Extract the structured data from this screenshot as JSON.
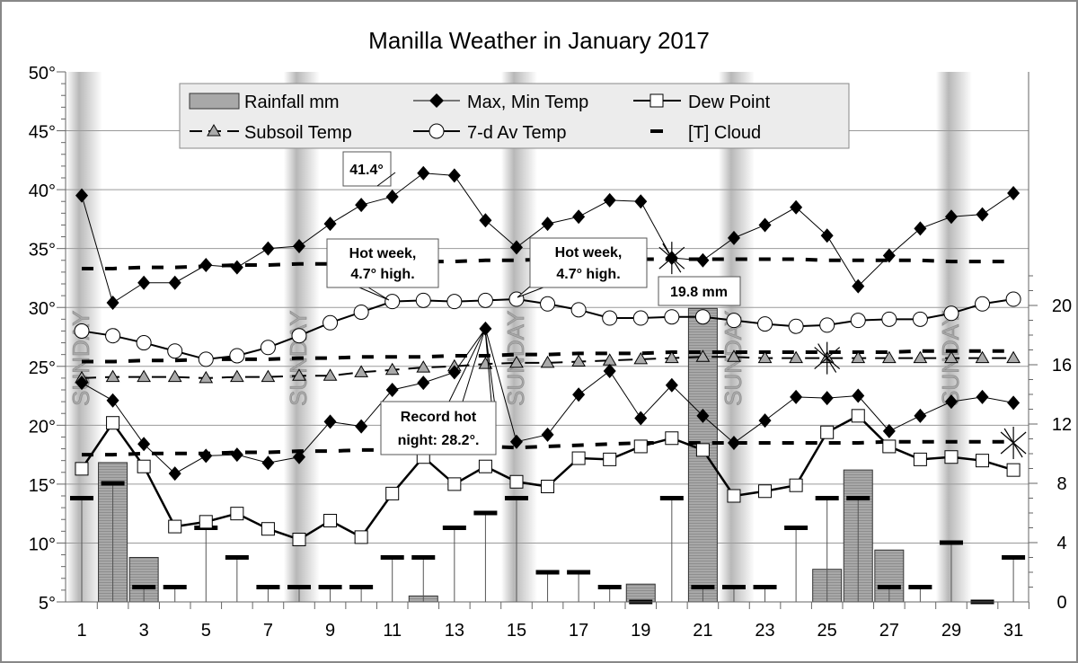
{
  "chart_data": {
    "type": "line",
    "title": "Manilla Weather in January 2017",
    "x": [
      1,
      2,
      3,
      4,
      5,
      6,
      7,
      8,
      9,
      10,
      11,
      12,
      13,
      14,
      15,
      16,
      17,
      18,
      19,
      20,
      21,
      22,
      23,
      24,
      25,
      26,
      27,
      28,
      29,
      30,
      31
    ],
    "x_tick_labels": [
      "1",
      "3",
      "5",
      "7",
      "9",
      "11",
      "13",
      "15",
      "17",
      "19",
      "21",
      "23",
      "25",
      "27",
      "29",
      "31"
    ],
    "y_left": {
      "range": [
        5,
        50
      ],
      "tick_labels": [
        "5°",
        "10°",
        "15°",
        "20°",
        "25°",
        "30°",
        "35°",
        "40°",
        "45°",
        "50°"
      ]
    },
    "y_right": {
      "range": [
        0,
        22.4
      ],
      "tick_labels": [
        "0",
        "4",
        "8",
        "12",
        "16",
        "20"
      ]
    },
    "grid": true,
    "legend_position": "top",
    "series": [
      {
        "name": "Rainfall mm",
        "type": "bar",
        "axis": "right",
        "values": [
          0,
          9.4,
          3.0,
          0,
          0,
          0,
          0,
          0,
          0,
          0,
          0,
          0.4,
          0,
          0,
          0,
          0,
          0,
          0,
          1.2,
          0,
          19.8,
          0,
          0,
          0,
          2.2,
          8.9,
          3.5,
          0,
          0,
          0,
          0
        ]
      },
      {
        "name": "Max, Min Temp",
        "type": "line",
        "marker": "diamond",
        "axis": "left",
        "max": [
          39.5,
          30.4,
          32.1,
          32.1,
          33.6,
          33.4,
          35.0,
          35.2,
          37.1,
          38.7,
          39.4,
          41.4,
          41.2,
          37.4,
          35.1,
          37.1,
          37.7,
          39.1,
          39.0,
          34.2,
          34.0,
          35.9,
          37.0,
          38.5,
          36.1,
          31.8,
          34.4,
          36.7,
          37.7,
          37.9,
          39.7
        ],
        "min": [
          23.6,
          22.1,
          18.4,
          15.9,
          17.4,
          17.5,
          16.8,
          17.3,
          20.3,
          19.9,
          23.0,
          23.6,
          24.5,
          28.2,
          18.6,
          19.2,
          22.6,
          24.6,
          20.6,
          23.4,
          20.8,
          18.5,
          20.4,
          22.4,
          22.3,
          22.5,
          19.5,
          20.8,
          22.0,
          22.4,
          21.9
        ]
      },
      {
        "name": "Dew Point",
        "type": "line",
        "marker": "square",
        "axis": "left",
        "values": [
          16.3,
          20.2,
          16.5,
          11.4,
          11.8,
          12.5,
          11.2,
          10.3,
          11.9,
          10.5,
          14.2,
          17.3,
          15.0,
          16.5,
          15.2,
          14.8,
          17.2,
          17.1,
          18.2,
          18.9,
          17.9,
          14.0,
          14.4,
          14.9,
          19.4,
          20.8,
          18.2,
          17.1,
          17.3,
          17.0,
          16.2
        ]
      },
      {
        "name": "Subsoil Temp",
        "type": "line",
        "marker": "triangle",
        "axis": "left",
        "values": [
          24.0,
          24.1,
          24.1,
          24.1,
          24.0,
          24.1,
          24.1,
          24.2,
          24.2,
          24.5,
          24.7,
          24.9,
          25.0,
          25.2,
          25.3,
          25.3,
          25.4,
          25.5,
          25.6,
          25.7,
          25.8,
          25.8,
          25.7,
          25.7,
          25.7,
          25.7,
          25.7,
          25.7,
          25.7,
          25.7,
          25.7
        ]
      },
      {
        "name": "7-d Av Temp",
        "type": "line",
        "marker": "circle",
        "axis": "left",
        "values": [
          28.0,
          27.6,
          27.0,
          26.3,
          25.6,
          25.9,
          26.6,
          27.6,
          28.7,
          29.6,
          30.5,
          30.6,
          30.5,
          30.6,
          30.7,
          30.3,
          29.8,
          29.1,
          29.1,
          29.2,
          29.2,
          28.9,
          28.6,
          28.4,
          28.5,
          28.9,
          29.0,
          29.0,
          29.5,
          30.3,
          30.7
        ]
      },
      {
        "name": "[T] Cloud",
        "type": "marker",
        "marker": "dash",
        "axis": "right",
        "values": [
          7,
          8,
          1,
          1,
          5,
          3,
          1,
          1,
          1,
          1,
          3,
          3,
          5,
          6,
          7,
          2,
          2,
          1,
          0,
          7,
          1,
          1,
          1,
          5,
          7,
          7,
          1,
          1,
          4,
          0,
          3
        ]
      },
      {
        "type": "dashed-line",
        "axis": "left",
        "values": [
          33.3,
          33.3,
          33.4,
          33.4,
          33.5,
          33.6,
          33.6,
          33.7,
          33.7,
          33.8,
          33.8,
          33.9,
          33.9,
          34.0,
          34.0,
          34.1,
          34.1,
          34.1,
          34.1,
          34.1,
          34.1,
          34.1,
          34.1,
          34.1,
          34.0,
          34.0,
          34.0,
          34.0,
          33.9,
          33.9,
          33.9
        ]
      },
      {
        "type": "dashed-line",
        "axis": "left",
        "values": [
          25.4,
          25.4,
          25.5,
          25.5,
          25.6,
          25.6,
          25.6,
          25.7,
          25.7,
          25.8,
          25.8,
          25.8,
          25.9,
          25.9,
          26.0,
          26.0,
          26.1,
          26.1,
          26.1,
          26.2,
          26.2,
          26.2,
          26.2,
          26.2,
          26.2,
          26.2,
          26.2,
          26.3,
          26.3,
          26.3,
          26.3
        ]
      },
      {
        "type": "dashed-line",
        "axis": "left",
        "values": [
          17.5,
          17.5,
          17.6,
          17.6,
          17.6,
          17.7,
          17.7,
          17.8,
          17.8,
          17.9,
          17.9,
          18.0,
          18.1,
          18.2,
          18.1,
          18.2,
          18.3,
          18.4,
          18.5,
          18.5,
          18.5,
          18.5,
          18.5,
          18.5,
          18.5,
          18.5,
          18.6,
          18.6,
          18.6,
          18.6,
          18.6
        ]
      }
    ],
    "sundays": [
      1,
      8,
      15,
      22,
      29
    ],
    "sunday_label": "SUNDAY",
    "star_markers": [
      {
        "day": 20,
        "value": 34.2
      },
      {
        "day": 25,
        "value": 25.7
      },
      {
        "day": 31,
        "value": 18.5
      }
    ],
    "annotations": {
      "peak": "41.4°",
      "hot_week_1_line1": "Hot week,",
      "hot_week_1_line2": "4.7° high.",
      "hot_week_2_line1": "Hot week,",
      "hot_week_2_line2": "4.7° high.",
      "record_line1": "Record hot",
      "record_line2": "night: 28.2°.",
      "rain": "19.8 mm"
    },
    "colors": {
      "bar": "#a8a8a8",
      "sunday_band": "#b8b8b8",
      "legend_bg": "#ececec",
      "grid": "#9a9a9a"
    }
  }
}
